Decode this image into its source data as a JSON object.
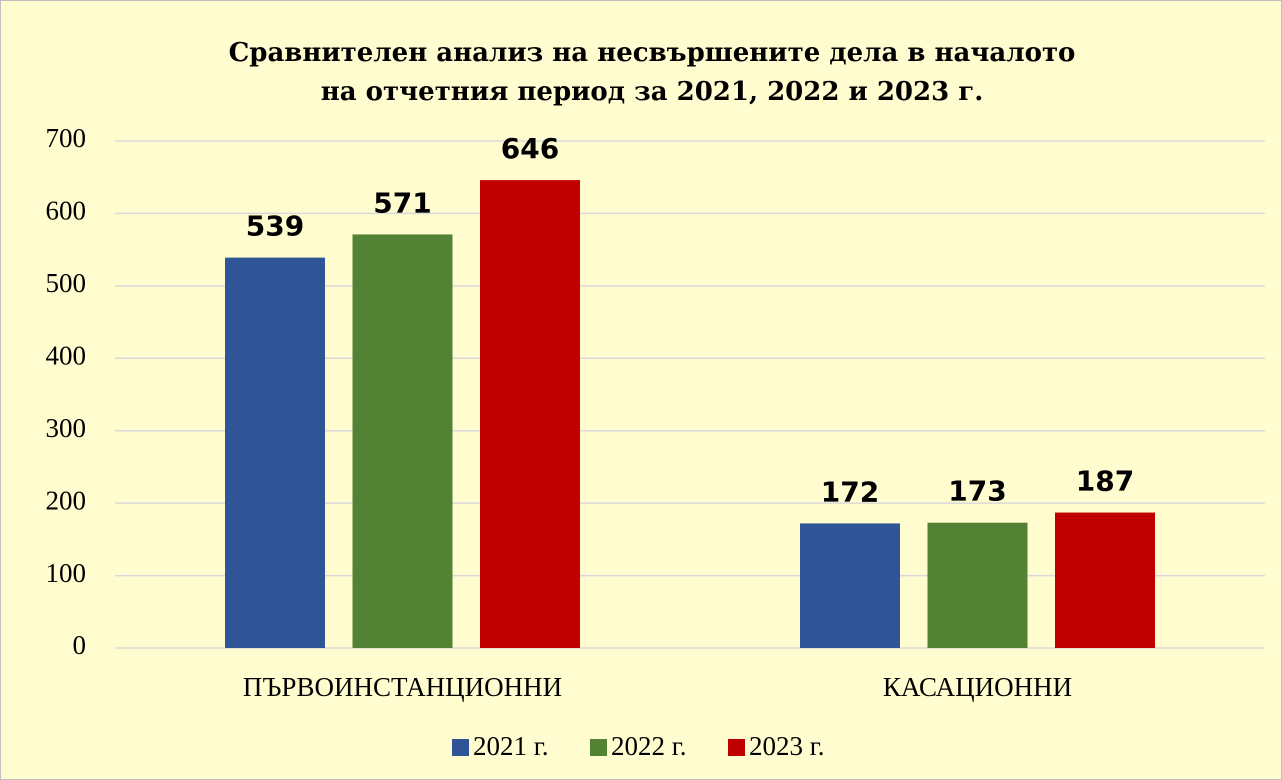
{
  "chart_data": {
    "type": "bar",
    "title": [
      "Сравнителен анализ на несвършените дела в началото",
      "на отчетния период за 2021, 2022 и 2023 г."
    ],
    "categories": [
      "ПЪРВОИНСТАНЦИОННИ",
      "КАСАЦИОННИ"
    ],
    "series": [
      {
        "name": "2021 г.",
        "color": "#2f5597",
        "values": [
          539,
          172
        ]
      },
      {
        "name": "2022 г.",
        "color": "#548235",
        "values": [
          571,
          173
        ]
      },
      {
        "name": "2023 г.",
        "color": "#c00000",
        "values": [
          646,
          187
        ]
      }
    ],
    "ylim": [
      0,
      700
    ],
    "yticks": [
      0,
      100,
      200,
      300,
      400,
      500,
      600,
      700
    ],
    "grid": true,
    "legend": "bottom"
  }
}
